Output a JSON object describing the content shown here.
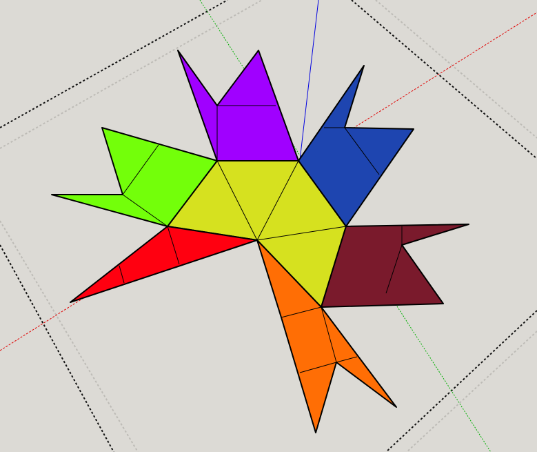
{
  "viewport": {
    "background": "#dcdad5"
  },
  "axes": [
    {
      "name": "red-axis",
      "color": "#e00000"
    },
    {
      "name": "green-axis",
      "color": "#00b000"
    },
    {
      "name": "blue-axis",
      "color": "#0000e0"
    }
  ],
  "grid": {
    "color": "#b9b7b2"
  },
  "faces": {
    "center": "#d6e11f",
    "purple": "#a000ff",
    "blue": "#1e45b0",
    "green": "#73ff0a",
    "red": "#ff0010",
    "orange": "#ff6e05",
    "maroon": "#7a1a2c"
  }
}
